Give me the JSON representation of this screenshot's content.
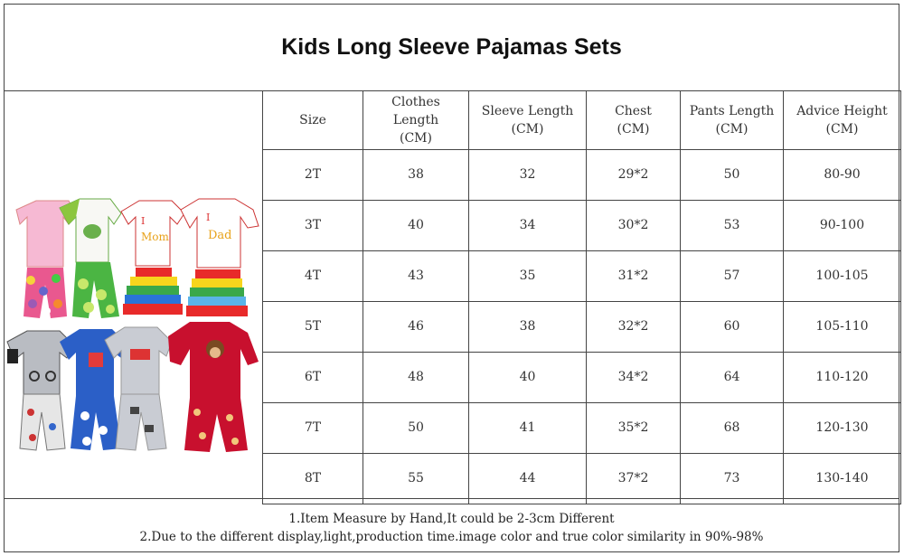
{
  "title": "Kids Long Sleeve Pajamas Sets",
  "headers": {
    "size": "Size",
    "clothes_length": [
      "Clothes",
      "Length",
      "(CM)"
    ],
    "sleeve_length": [
      "Sleeve Length",
      "(CM)"
    ],
    "chest": [
      "Chest",
      "(CM)"
    ],
    "pants_length": [
      "Pants Length",
      "(CM)"
    ],
    "advice_height": [
      "Advice Height",
      "(CM)"
    ]
  },
  "rows": [
    {
      "size": "2T",
      "clothes": "38",
      "sleeve": "32",
      "chest": "29*2",
      "pants": "50",
      "height": "80-90"
    },
    {
      "size": "3T",
      "clothes": "40",
      "sleeve": "34",
      "chest": "30*2",
      "pants": "53",
      "height": "90-100"
    },
    {
      "size": "4T",
      "clothes": "43",
      "sleeve": "35",
      "chest": "31*2",
      "pants": "57",
      "height": "100-105"
    },
    {
      "size": "5T",
      "clothes": "46",
      "sleeve": "38",
      "chest": "32*2",
      "pants": "60",
      "height": "105-110"
    },
    {
      "size": "6T",
      "clothes": "48",
      "sleeve": "40",
      "chest": "34*2",
      "pants": "64",
      "height": "110-120"
    },
    {
      "size": "7T",
      "clothes": "50",
      "sleeve": "41",
      "chest": "35*2",
      "pants": "68",
      "height": "120-130"
    },
    {
      "size": "8T",
      "clothes": "55",
      "sleeve": "44",
      "chest": "37*2",
      "pants": "73",
      "height": "130-140"
    }
  ],
  "notes": [
    "1.Item Measure by Hand,It could be 2-3cm Different",
    "2.Due to the different display,light,production time.image color and true color similarity in 90%-98%"
  ],
  "photo": {
    "shirt_texts": [
      "I",
      "Mom",
      "I",
      "Dad"
    ]
  },
  "colors": {
    "border": "#444444",
    "text": "#333333"
  }
}
